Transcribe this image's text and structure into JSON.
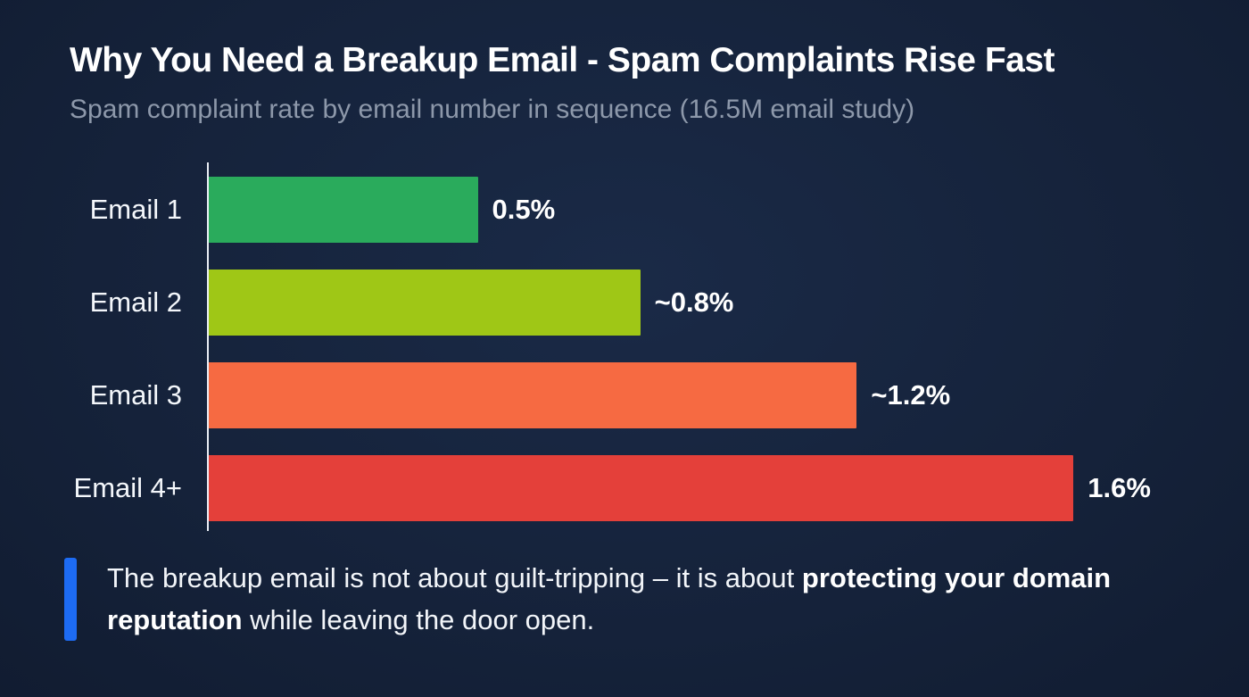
{
  "header": {
    "title": "Why You Need a Breakup Email - Spam Complaints Rise Fast",
    "subtitle": "Spam complaint rate by email number in sequence (16.5M email study)"
  },
  "chart_data": {
    "type": "bar",
    "orientation": "horizontal",
    "title": "Why You Need a Breakup Email - Spam Complaints Rise Fast",
    "subtitle": "Spam complaint rate by email number in sequence (16.5M email study)",
    "categories": [
      "Email 1",
      "Email 2",
      "Email 3",
      "Email 4+"
    ],
    "values": [
      0.5,
      0.8,
      1.2,
      1.6
    ],
    "value_labels": [
      "0.5%",
      "~0.8%",
      "~1.2%",
      "1.6%"
    ],
    "bar_colors": [
      "#2aab5c",
      "#9fc716",
      "#f66a42",
      "#e4403a"
    ],
    "xlabel": "",
    "ylabel": "",
    "xlim": [
      0,
      1.85
    ],
    "grid": false,
    "legend": "none",
    "axis_color": "#e9edf4"
  },
  "note": {
    "accent_color": "#1d6bf3",
    "text_before_bold": "The breakup email is not about guilt-tripping – it is about ",
    "bold_text": "protecting your domain reputation",
    "text_after_bold": " while leaving the door open."
  },
  "theme": {
    "background": "#15223a",
    "title_color": "#ffffff",
    "subtitle_color": "#8d98aa"
  }
}
